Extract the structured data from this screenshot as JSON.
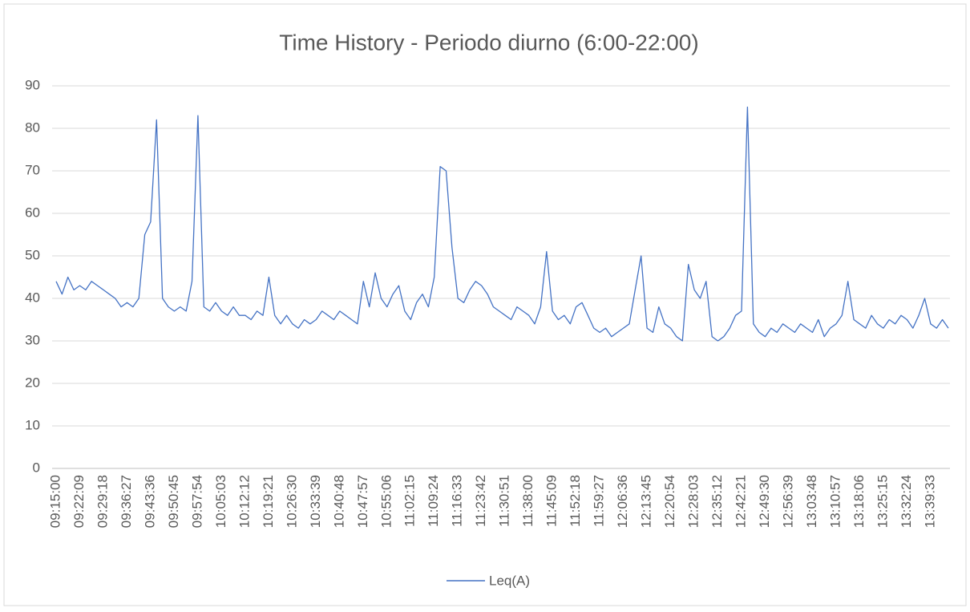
{
  "chart_data": {
    "type": "line",
    "title": "Time History - Periodo diurno (6:00-22:00)",
    "categories": [
      "09:15:00",
      null,
      null,
      null,
      "09:22:09",
      null,
      null,
      null,
      "09:29:18",
      null,
      null,
      null,
      "09:36:27",
      null,
      null,
      null,
      "09:43:36",
      null,
      null,
      null,
      "09:50:45",
      null,
      null,
      null,
      "09:57:54",
      null,
      null,
      null,
      "10:05:03",
      null,
      null,
      null,
      "10:12:12",
      null,
      null,
      null,
      "10:19:21",
      null,
      null,
      null,
      "10:26:30",
      null,
      null,
      null,
      "10:33:39",
      null,
      null,
      null,
      "10:40:48",
      null,
      null,
      null,
      "10:47:57",
      null,
      null,
      null,
      "10:55:06",
      null,
      null,
      null,
      "11:02:15",
      null,
      null,
      null,
      "11:09:24",
      null,
      null,
      null,
      "11:16:33",
      null,
      null,
      null,
      "11:23:42",
      null,
      null,
      null,
      "11:30:51",
      null,
      null,
      null,
      "11:38:00",
      null,
      null,
      null,
      "11:45:09",
      null,
      null,
      null,
      "11:52:18",
      null,
      null,
      null,
      "11:59:27",
      null,
      null,
      null,
      "12:06:36",
      null,
      null,
      null,
      "12:13:45",
      null,
      null,
      null,
      "12:20:54",
      null,
      null,
      null,
      "12:28:03",
      null,
      null,
      null,
      "12:35:12",
      null,
      null,
      null,
      "12:42:21",
      null,
      null,
      null,
      "12:49:30",
      null,
      null,
      null,
      "12:56:39",
      null,
      null,
      null,
      "13:03:48",
      null,
      null,
      null,
      "13:10:57",
      null,
      null,
      null,
      "13:18:06",
      null,
      null,
      null,
      "13:25:15",
      null,
      null,
      null,
      "13:32:24",
      null,
      null,
      null,
      "13:39:33",
      null,
      null,
      null
    ],
    "series": [
      {
        "name": "Leq(A)",
        "color": "#4472c4",
        "values": [
          44,
          41,
          45,
          42,
          43,
          42,
          44,
          43,
          42,
          41,
          40,
          38,
          39,
          38,
          40,
          55,
          58,
          82,
          40,
          38,
          37,
          38,
          37,
          44,
          83,
          38,
          37,
          39,
          37,
          36,
          38,
          36,
          36,
          35,
          37,
          36,
          45,
          36,
          34,
          36,
          34,
          33,
          35,
          34,
          35,
          37,
          36,
          35,
          37,
          36,
          35,
          34,
          44,
          38,
          46,
          40,
          38,
          41,
          43,
          37,
          35,
          39,
          41,
          38,
          45,
          71,
          70,
          52,
          40,
          39,
          42,
          44,
          43,
          41,
          38,
          37,
          36,
          35,
          38,
          37,
          36,
          34,
          38,
          51,
          37,
          35,
          36,
          34,
          38,
          39,
          36,
          33,
          32,
          33,
          31,
          32,
          33,
          34,
          42,
          50,
          33,
          32,
          38,
          34,
          33,
          31,
          30,
          48,
          42,
          40,
          44,
          31,
          30,
          31,
          33,
          36,
          37,
          85,
          34,
          32,
          31,
          33,
          32,
          34,
          33,
          32,
          34,
          33,
          32,
          35,
          31,
          33,
          34,
          36,
          44,
          35,
          34,
          33,
          36,
          34,
          33,
          35,
          34,
          36,
          35,
          33,
          36,
          40,
          34,
          33,
          35,
          33
        ]
      }
    ],
    "ylim": [
      0,
      90
    ],
    "yticks": [
      0,
      10,
      20,
      30,
      40,
      50,
      60,
      70,
      80,
      90
    ],
    "grid": true,
    "legend": "bottom"
  }
}
